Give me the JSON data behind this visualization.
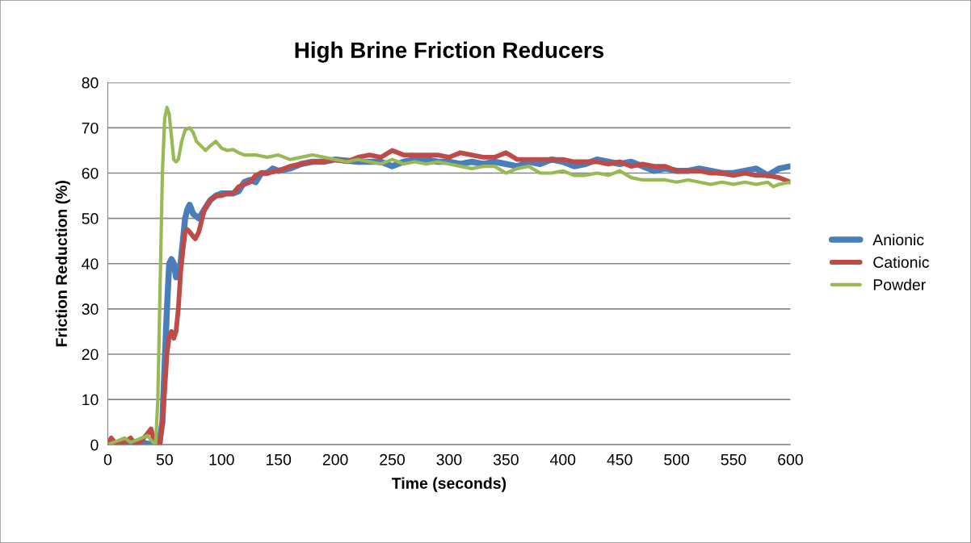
{
  "chart_data": {
    "type": "line",
    "title": "High Brine Friction Reducers",
    "xlabel": "Time (seconds)",
    "ylabel": "Friction Reduction (%)",
    "xlim": [
      0,
      600
    ],
    "xticks": [
      0,
      50,
      100,
      150,
      200,
      250,
      300,
      350,
      400,
      450,
      500,
      550,
      600
    ],
    "ylim": [
      0,
      80
    ],
    "yticks": [
      0,
      10,
      20,
      30,
      40,
      50,
      60,
      70,
      80
    ],
    "grid": "y",
    "legend": "right",
    "marker": "none",
    "line_style": "solid",
    "series": [
      {
        "name": "Anionic",
        "color": "#4a7ebb",
        "x": [
          0,
          10,
          20,
          30,
          40,
          45,
          48,
          50,
          52,
          54,
          56,
          58,
          60,
          62,
          64,
          66,
          68,
          70,
          72,
          75,
          80,
          85,
          90,
          95,
          100,
          110,
          115,
          120,
          125,
          130,
          135,
          140,
          145,
          150,
          160,
          170,
          180,
          190,
          200,
          220,
          240,
          250,
          260,
          270,
          280,
          290,
          300,
          310,
          320,
          330,
          340,
          350,
          360,
          370,
          380,
          390,
          400,
          410,
          420,
          430,
          440,
          450,
          460,
          470,
          480,
          490,
          500,
          510,
          520,
          530,
          540,
          550,
          560,
          570,
          580,
          590,
          600
        ],
        "values": [
          0,
          0,
          0,
          0.5,
          0,
          0,
          5,
          18,
          30,
          40,
          41,
          40,
          37,
          37,
          40,
          45,
          50,
          52,
          53,
          51,
          50,
          52,
          54,
          55,
          55.5,
          55.5,
          56,
          58,
          58.5,
          58,
          60,
          60,
          61,
          60.5,
          61,
          62,
          62.5,
          62.5,
          63,
          62.5,
          62.5,
          61.5,
          62.5,
          63,
          63,
          62.5,
          62.5,
          62,
          62.5,
          62,
          62.5,
          62,
          61.5,
          62.5,
          62,
          63,
          62.5,
          61.5,
          62,
          63,
          62.5,
          62,
          62.5,
          61.5,
          60.5,
          61,
          60.5,
          60.5,
          61,
          60.5,
          60,
          60,
          60.5,
          61,
          59.5,
          61,
          61.5
        ]
      },
      {
        "name": "Cationic",
        "color": "#be4b48",
        "x": [
          0,
          3,
          8,
          15,
          20,
          25,
          30,
          35,
          38,
          40,
          44,
          46,
          48,
          50,
          52,
          54,
          56,
          58,
          60,
          62,
          64,
          66,
          68,
          70,
          72,
          75,
          77,
          80,
          85,
          90,
          95,
          100,
          105,
          110,
          115,
          120,
          125,
          130,
          135,
          140,
          150,
          160,
          170,
          180,
          190,
          200,
          210,
          220,
          230,
          240,
          250,
          260,
          270,
          280,
          290,
          300,
          310,
          320,
          330,
          340,
          350,
          360,
          370,
          380,
          390,
          400,
          410,
          420,
          430,
          440,
          450,
          460,
          470,
          480,
          490,
          500,
          510,
          520,
          530,
          540,
          550,
          560,
          570,
          580,
          590,
          600
        ],
        "values": [
          0,
          1.5,
          0,
          0.5,
          1.5,
          0,
          1,
          2.5,
          3.5,
          1.5,
          0,
          0,
          5,
          12,
          20,
          24,
          25,
          23.5,
          25,
          30,
          38,
          43,
          47,
          47.5,
          47,
          46,
          45.5,
          47,
          52,
          54,
          55,
          55,
          55.5,
          55.5,
          57,
          57.5,
          58,
          59.5,
          60,
          60,
          60.5,
          61.5,
          62,
          62.5,
          62.5,
          63,
          62.5,
          63.5,
          64,
          63.5,
          65,
          64,
          64,
          64,
          64,
          63.5,
          64.5,
          64,
          63.5,
          63.5,
          64.5,
          63,
          63,
          63,
          63,
          63,
          62.5,
          62.5,
          62.5,
          62,
          62.5,
          61.5,
          62,
          61.5,
          61.5,
          60.5,
          60.5,
          60.5,
          60,
          60,
          59.5,
          60,
          59.5,
          59.5,
          59,
          58
        ]
      },
      {
        "name": "Powder",
        "color": "#98b954",
        "x": [
          0,
          5,
          10,
          15,
          20,
          25,
          30,
          35,
          38,
          42,
          44,
          46,
          48,
          50,
          52,
          54,
          56,
          58,
          60,
          62,
          65,
          68,
          72,
          75,
          78,
          82,
          86,
          90,
          95,
          100,
          105,
          110,
          115,
          120,
          130,
          140,
          150,
          160,
          170,
          180,
          190,
          200,
          210,
          220,
          230,
          240,
          250,
          260,
          270,
          280,
          290,
          300,
          310,
          320,
          330,
          340,
          350,
          360,
          370,
          380,
          390,
          400,
          410,
          420,
          430,
          440,
          450,
          460,
          470,
          480,
          490,
          500,
          510,
          520,
          530,
          540,
          550,
          560,
          570,
          580,
          585,
          590,
          600
        ],
        "values": [
          0,
          0.5,
          1,
          1.5,
          0.5,
          1,
          1.5,
          2,
          1,
          0,
          10,
          35,
          60,
          72,
          74.5,
          73,
          68,
          63,
          62.5,
          63,
          67,
          69.5,
          70,
          69,
          67,
          66,
          65,
          66,
          67,
          65.5,
          65,
          65.2,
          64.5,
          64,
          64,
          63.5,
          64,
          63,
          63.5,
          64,
          63.5,
          63,
          62.5,
          63,
          62.5,
          62,
          63,
          62,
          62.5,
          62,
          62.5,
          62,
          61.5,
          61,
          61.5,
          61.5,
          60,
          61,
          61.5,
          60,
          60,
          60.5,
          59.5,
          59.5,
          60,
          59.5,
          60.5,
          59,
          58.5,
          58.5,
          58.5,
          58,
          58.5,
          58,
          57.5,
          58,
          57.5,
          58,
          57.5,
          58,
          57,
          57.5,
          58
        ]
      }
    ]
  }
}
